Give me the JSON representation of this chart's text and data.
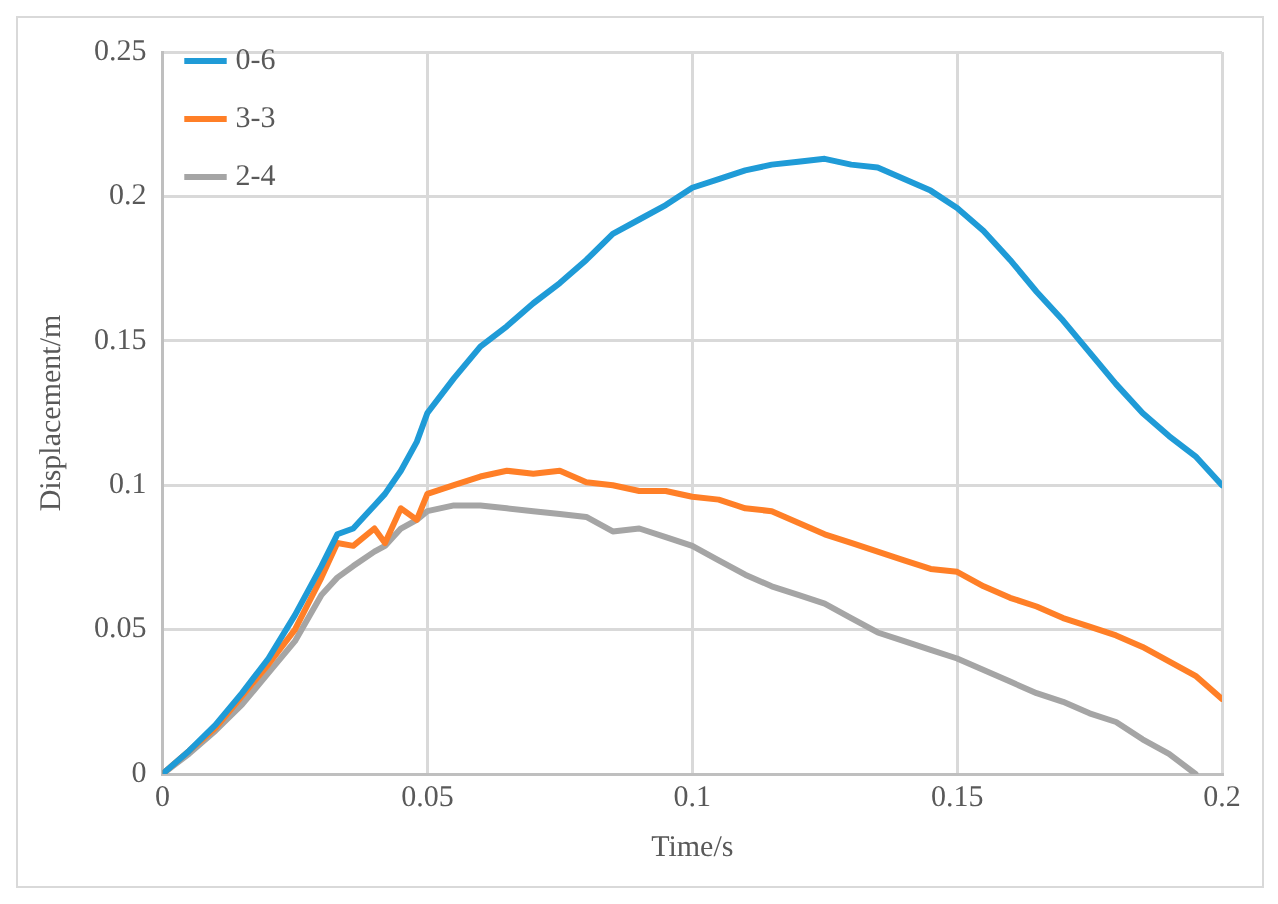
{
  "chart_data": {
    "type": "line",
    "xlabel": "Time/s",
    "ylabel": "Displacement/m",
    "xlim": [
      0,
      0.2
    ],
    "xticks": [
      0,
      0.05,
      0.1,
      0.15,
      0.2
    ],
    "ylim": [
      0,
      0.25
    ],
    "yticks": [
      0,
      0.05,
      0.1,
      0.15,
      0.2,
      0.25
    ],
    "grid": true,
    "legend": "top left",
    "marker": "none",
    "line_style": "solid",
    "x": [
      0,
      0.005,
      0.01,
      0.015,
      0.02,
      0.025,
      0.03,
      0.033,
      0.036,
      0.04,
      0.042,
      0.045,
      0.048,
      0.05,
      0.055,
      0.06,
      0.065,
      0.07,
      0.075,
      0.08,
      0.085,
      0.09,
      0.095,
      0.1,
      0.105,
      0.11,
      0.115,
      0.12,
      0.125,
      0.13,
      0.135,
      0.14,
      0.145,
      0.15,
      0.155,
      0.16,
      0.165,
      0.17,
      0.175,
      0.18,
      0.185,
      0.19,
      0.195,
      0.2
    ],
    "series": [
      {
        "name": "0-6",
        "color": "#1f9bd7",
        "values": [
          0,
          0.008,
          0.017,
          0.028,
          0.04,
          0.055,
          0.072,
          0.083,
          0.085,
          0.093,
          0.097,
          0.105,
          0.115,
          0.125,
          0.137,
          0.148,
          0.155,
          0.163,
          0.17,
          0.178,
          0.187,
          0.192,
          0.197,
          0.203,
          0.206,
          0.209,
          0.211,
          0.212,
          0.213,
          0.211,
          0.21,
          0.206,
          0.202,
          0.196,
          0.188,
          0.178,
          0.167,
          0.157,
          0.146,
          0.135,
          0.125,
          0.117,
          0.11,
          0.1
        ]
      },
      {
        "name": "3-3",
        "color": "#ff7f27",
        "values": [
          0,
          0.008,
          0.016,
          0.027,
          0.038,
          0.05,
          0.068,
          0.08,
          0.079,
          0.085,
          0.08,
          0.092,
          0.088,
          0.097,
          0.1,
          0.103,
          0.105,
          0.104,
          0.105,
          0.101,
          0.1,
          0.098,
          0.098,
          0.096,
          0.095,
          0.092,
          0.091,
          0.087,
          0.083,
          0.08,
          0.077,
          0.074,
          0.071,
          0.07,
          0.065,
          0.061,
          0.058,
          0.054,
          0.051,
          0.048,
          0.044,
          0.039,
          0.034,
          0.026
        ]
      },
      {
        "name": "2-4",
        "color": "#a5a5a5",
        "values": [
          0,
          0.007,
          0.015,
          0.024,
          0.035,
          0.046,
          0.062,
          0.068,
          0.072,
          0.077,
          0.079,
          0.085,
          0.088,
          0.091,
          0.093,
          0.093,
          0.092,
          0.091,
          0.09,
          0.089,
          0.084,
          0.085,
          0.082,
          0.079,
          0.074,
          0.069,
          0.065,
          0.062,
          0.059,
          0.054,
          0.049,
          0.046,
          0.043,
          0.04,
          0.036,
          0.032,
          0.028,
          0.025,
          0.021,
          0.018,
          0.012,
          0.007,
          0,
          null
        ]
      }
    ]
  }
}
